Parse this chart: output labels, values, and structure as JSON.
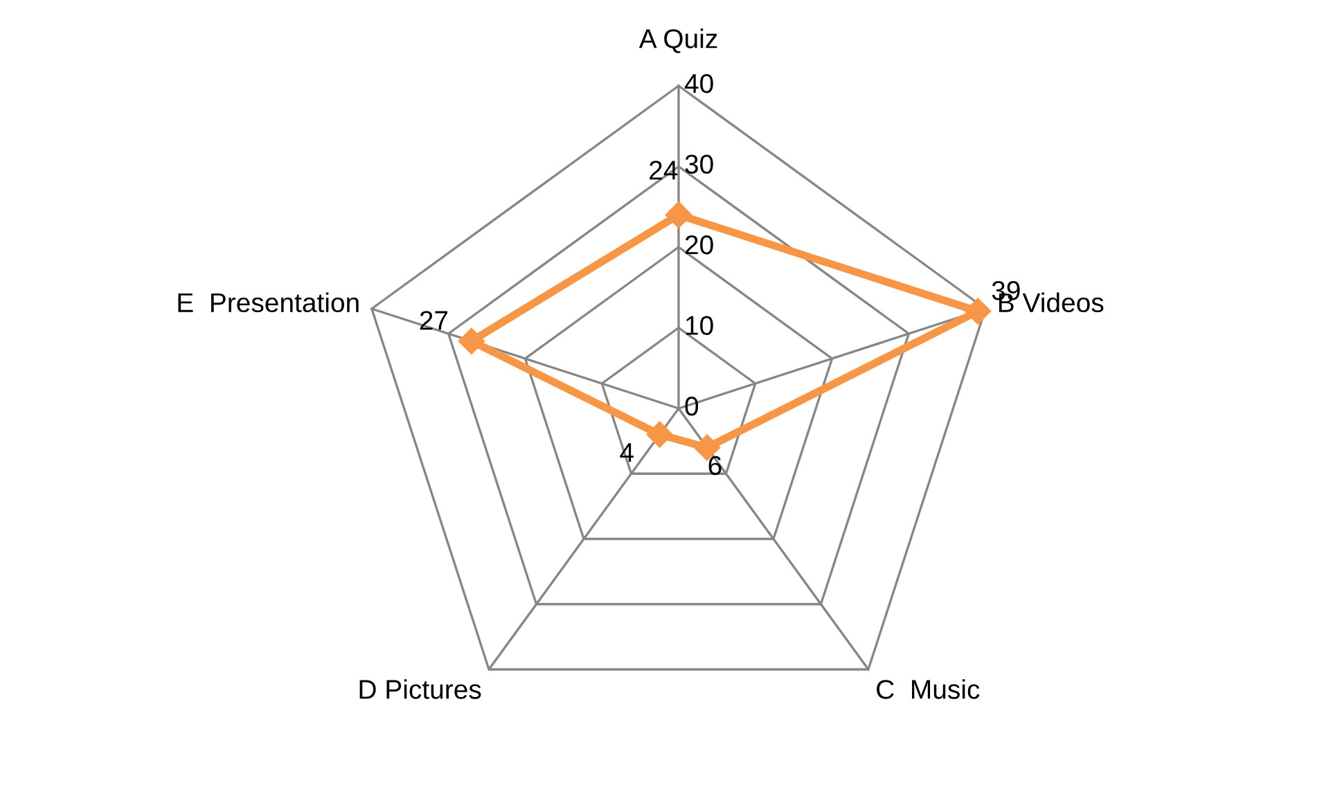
{
  "chart_data": {
    "type": "radar",
    "categories": [
      "A Quiz",
      "B Videos",
      "C  Music",
      "D Pictures",
      "E  Presentation"
    ],
    "series": [
      {
        "color": "#f79646",
        "values": [
          24,
          39,
          6,
          4,
          27
        ]
      }
    ],
    "ylim": [
      0,
      40
    ],
    "yticks": [
      0,
      10,
      20,
      30,
      40
    ],
    "grid": true,
    "marker": "diamond",
    "line_style": "solid",
    "data_labels": true
  }
}
